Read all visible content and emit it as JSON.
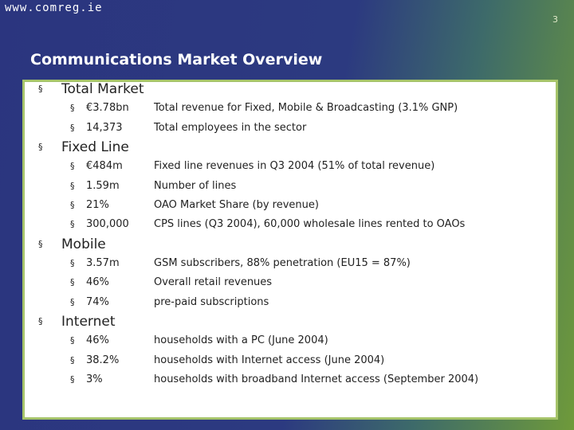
{
  "header": {
    "url": "www.comreg.ie",
    "page_number": "3",
    "title": "Communications Market Overview"
  },
  "bullet": "§",
  "sections": [
    {
      "heading": "Total Market",
      "items": [
        {
          "value": "€3.78bn",
          "description": "Total revenue for Fixed, Mobile & Broadcasting (3.1% GNP)"
        },
        {
          "value": "14,373",
          "description": "Total employees in the sector"
        }
      ]
    },
    {
      "heading": "Fixed Line",
      "items": [
        {
          "value": "€484m",
          "description": "Fixed line revenues in Q3 2004 (51% of total revenue)"
        },
        {
          "value": "1.59m",
          "description": "Number of lines"
        },
        {
          "value": "21%",
          "description": "OAO Market Share (by revenue)"
        },
        {
          "value": "300,000",
          "description": "CPS lines (Q3 2004), 60,000 wholesale lines rented to OAOs"
        }
      ]
    },
    {
      "heading": "Mobile",
      "items": [
        {
          "value": "3.57m",
          "description": "GSM subscribers, 88% penetration (EU15 = 87%)"
        },
        {
          "value": "46%",
          "description": "Overall retail revenues"
        },
        {
          "value": "74%",
          "description": "pre-paid subscriptions"
        }
      ]
    },
    {
      "heading": "Internet",
      "items": [
        {
          "value": "46%",
          "description": "households with a PC (June 2004)"
        },
        {
          "value": "38.2%",
          "description": "households with Internet access (June 2004)"
        },
        {
          "value": "3%",
          "description": "households with broadband Internet access (September 2004)"
        }
      ]
    }
  ]
}
